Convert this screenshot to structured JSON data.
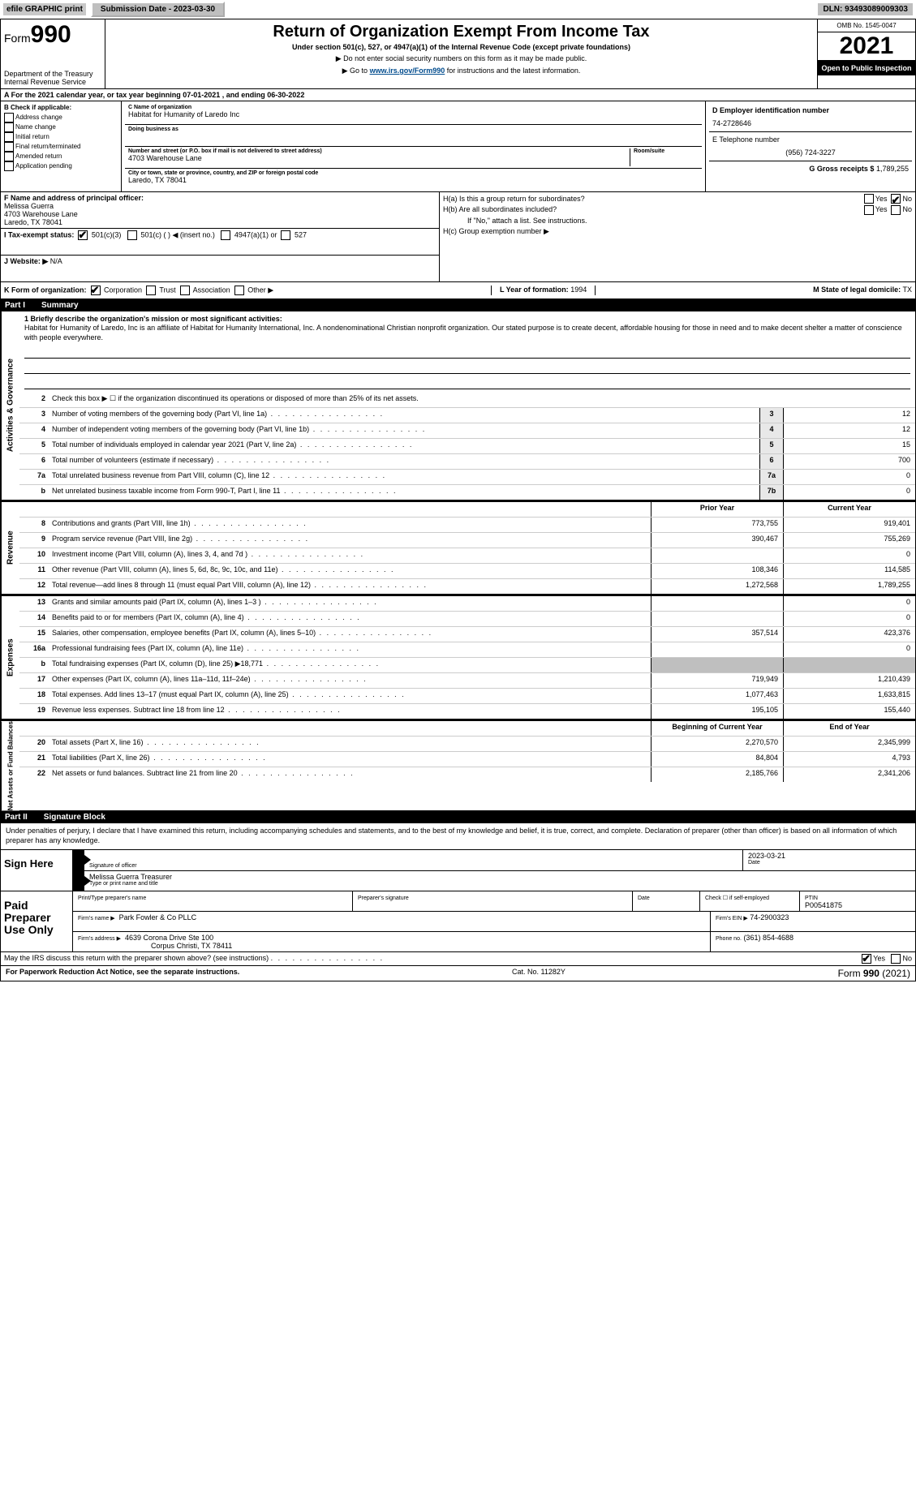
{
  "topbar": {
    "efile": "efile GRAPHIC print",
    "submission": "Submission Date - 2023-03-30",
    "dln": "DLN: 93493089009303"
  },
  "header": {
    "form_prefix": "Form",
    "form_number": "990",
    "title": "Return of Organization Exempt From Income Tax",
    "subtitle": "Under section 501(c), 527, or 4947(a)(1) of the Internal Revenue Code (except private foundations)",
    "noss": "▶ Do not enter social security numbers on this form as it may be made public.",
    "goto_prefix": "▶ Go to ",
    "goto_link": "www.irs.gov/Form990",
    "goto_suffix": " for instructions and the latest information.",
    "dept": "Department of the Treasury",
    "irs": "Internal Revenue Service",
    "omb": "OMB No. 1545-0047",
    "year": "2021",
    "open": "Open to Public Inspection"
  },
  "periodA": "A For the 2021 calendar year, or tax year beginning 07-01-2021     , and ending 06-30-2022",
  "boxB": {
    "label": "B Check if applicable:",
    "items": [
      "Address change",
      "Name change",
      "Initial return",
      "Final return/terminated",
      "Amended return",
      "Application pending"
    ]
  },
  "boxC": {
    "name_label": "C Name of organization",
    "name": "Habitat for Humanity of Laredo Inc",
    "dba_label": "Doing business as",
    "dba": "",
    "street_label": "Number and street (or P.O. box if mail is not delivered to street address)",
    "room_label": "Room/suite",
    "street": "4703 Warehouse Lane",
    "city_label": "City or town, state or province, country, and ZIP or foreign postal code",
    "city": "Laredo, TX  78041"
  },
  "boxD": {
    "label": "D Employer identification number",
    "value": "74-2728646"
  },
  "boxE": {
    "label": "E Telephone number",
    "value": "(956) 724-3227"
  },
  "boxG": {
    "label": "G Gross receipts $",
    "value": "1,789,255"
  },
  "boxF": {
    "label": "F Name and address of principal officer:",
    "name": "Melissa Guerra",
    "street": "4703 Warehouse Lane",
    "city": "Laredo, TX  78041"
  },
  "boxH": {
    "a": "H(a)  Is this a group return for subordinates?",
    "b": "H(b)  Are all subordinates included?",
    "b_note": "If \"No,\" attach a list. See instructions.",
    "c": "H(c)  Group exemption number ▶",
    "yes": "Yes",
    "no": "No"
  },
  "boxI": {
    "label": "I   Tax-exempt status:",
    "o1": "501(c)(3)",
    "o2": "501(c) (  ) ◀ (insert no.)",
    "o3": "4947(a)(1) or",
    "o4": "527"
  },
  "boxJ": {
    "label": "J  Website: ▶",
    "value": " N/A"
  },
  "boxK": {
    "label": "K Form of organization:",
    "o1": "Corporation",
    "o2": "Trust",
    "o3": "Association",
    "o4": "Other ▶"
  },
  "boxL": {
    "label": "L Year of formation:",
    "value": "1994"
  },
  "boxM": {
    "label": "M State of legal domicile:",
    "value": "TX"
  },
  "parts": {
    "p1": "Part I",
    "p1t": "Summary",
    "p2": "Part II",
    "p2t": "Signature Block"
  },
  "briefly": {
    "q": "1  Briefly describe the organization's mission or most significant activities:",
    "text": "Habitat for Humanity of Laredo, Inc is an affiliate of Habitat for Humanity International, Inc. A nondenominational Christian nonprofit organization. Our stated purpose is to create decent, affordable housing for those in need and to make decent shelter a matter of conscience with people everywhere."
  },
  "line2": "Check this box ▶ ☐  if the organization discontinued its operations or disposed of more than 25% of its net assets.",
  "governance": [
    {
      "n": "3",
      "d": "Number of voting members of the governing body (Part VI, line 1a)",
      "c": "3",
      "v": "12"
    },
    {
      "n": "4",
      "d": "Number of independent voting members of the governing body (Part VI, line 1b)",
      "c": "4",
      "v": "12"
    },
    {
      "n": "5",
      "d": "Total number of individuals employed in calendar year 2021 (Part V, line 2a)",
      "c": "5",
      "v": "15"
    },
    {
      "n": "6",
      "d": "Total number of volunteers (estimate if necessary)",
      "c": "6",
      "v": "700"
    },
    {
      "n": "7a",
      "d": "Total unrelated business revenue from Part VIII, column (C), line 12",
      "c": "7a",
      "v": "0"
    },
    {
      "n": "b",
      "d": "Net unrelated business taxable income from Form 990-T, Part I, line 11",
      "c": "7b",
      "v": "0"
    }
  ],
  "col_hdr": {
    "prior": "Prior Year",
    "curr": "Current Year"
  },
  "revenue": [
    {
      "n": "8",
      "d": "Contributions and grants (Part VIII, line 1h)",
      "p": "773,755",
      "c": "919,401"
    },
    {
      "n": "9",
      "d": "Program service revenue (Part VIII, line 2g)",
      "p": "390,467",
      "c": "755,269"
    },
    {
      "n": "10",
      "d": "Investment income (Part VIII, column (A), lines 3, 4, and 7d )",
      "p": "",
      "c": "0"
    },
    {
      "n": "11",
      "d": "Other revenue (Part VIII, column (A), lines 5, 6d, 8c, 9c, 10c, and 11e)",
      "p": "108,346",
      "c": "114,585"
    },
    {
      "n": "12",
      "d": "Total revenue—add lines 8 through 11 (must equal Part VIII, column (A), line 12)",
      "p": "1,272,568",
      "c": "1,789,255"
    }
  ],
  "expenses": [
    {
      "n": "13",
      "d": "Grants and similar amounts paid (Part IX, column (A), lines 1–3 )",
      "p": "",
      "c": "0"
    },
    {
      "n": "14",
      "d": "Benefits paid to or for members (Part IX, column (A), line 4)",
      "p": "",
      "c": "0"
    },
    {
      "n": "15",
      "d": "Salaries, other compensation, employee benefits (Part IX, column (A), lines 5–10)",
      "p": "357,514",
      "c": "423,376"
    },
    {
      "n": "16a",
      "d": "Professional fundraising fees (Part IX, column (A), line 11e)",
      "p": "",
      "c": "0"
    },
    {
      "n": "b",
      "d": "Total fundraising expenses (Part IX, column (D), line 25) ▶18,771",
      "p": "GRAY",
      "c": "GRAY"
    },
    {
      "n": "17",
      "d": "Other expenses (Part IX, column (A), lines 11a–11d, 11f–24e)",
      "p": "719,949",
      "c": "1,210,439"
    },
    {
      "n": "18",
      "d": "Total expenses. Add lines 13–17 (must equal Part IX, column (A), line 25)",
      "p": "1,077,463",
      "c": "1,633,815"
    },
    {
      "n": "19",
      "d": "Revenue less expenses. Subtract line 18 from line 12",
      "p": "195,105",
      "c": "155,440"
    }
  ],
  "netassets_hdr": {
    "prior": "Beginning of Current Year",
    "curr": "End of Year"
  },
  "netassets": [
    {
      "n": "20",
      "d": "Total assets (Part X, line 16)",
      "p": "2,270,570",
      "c": "2,345,999"
    },
    {
      "n": "21",
      "d": "Total liabilities (Part X, line 26)",
      "p": "84,804",
      "c": "4,793"
    },
    {
      "n": "22",
      "d": "Net assets or fund balances. Subtract line 21 from line 20",
      "p": "2,185,766",
      "c": "2,341,206"
    }
  ],
  "vtabs": {
    "gov": "Activities & Governance",
    "rev": "Revenue",
    "exp": "Expenses",
    "net": "Net Assets or Fund Balances"
  },
  "sigtext": "Under penalties of perjury, I declare that I have examined this return, including accompanying schedules and statements, and to the best of my knowledge and belief, it is true, correct, and complete. Declaration of preparer (other than officer) is based on all information of which preparer has any knowledge.",
  "sign": {
    "here": "Sign Here",
    "sig_officer": "Signature of officer",
    "date": "Date",
    "date_val": "2023-03-21",
    "typed": "Melissa Guerra  Treasurer",
    "typed_label": "Type or print name and title"
  },
  "paid": {
    "title": "Paid Preparer Use Only",
    "col1": "Print/Type preparer's name",
    "col2": "Preparer's signature",
    "col3": "Date",
    "col4a": "Check ☐ if self-employed",
    "col5l": "PTIN",
    "col5v": "P00541875",
    "firm_l": "Firm's name    ▶",
    "firm_v": "Park Fowler & Co PLLC",
    "ein_l": "Firm's EIN ▶",
    "ein_v": "74-2900323",
    "addr_l": "Firm's address ▶",
    "addr_v1": "4639 Corona Drive Ste 100",
    "addr_v2": "Corpus Christi, TX  78411",
    "phone_l": "Phone no.",
    "phone_v": "(361) 854-4688"
  },
  "discuss": {
    "q": "May the IRS discuss this return with the preparer shown above? (see instructions)",
    "yes": "Yes",
    "no": "No"
  },
  "footer": {
    "left": "For Paperwork Reduction Act Notice, see the separate instructions.",
    "mid": "Cat. No. 11282Y",
    "right": "Form 990 (2021)"
  }
}
